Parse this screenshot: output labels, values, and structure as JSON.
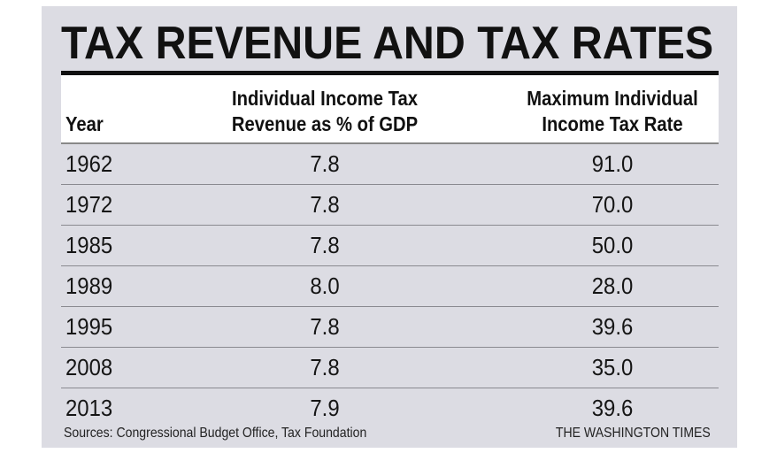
{
  "chart_data": {
    "type": "table",
    "title": "TAX REVENUE AND TAX RATES",
    "columns": [
      "Year",
      "Individual Income Tax Revenue as % of GDP",
      "Maximum Individual Income Tax Rate"
    ],
    "header_lines": [
      [
        "",
        "Year"
      ],
      [
        "Individual Income Tax",
        "Revenue as % of GDP"
      ],
      [
        "Maximum Individual",
        "Income Tax Rate"
      ]
    ],
    "rows": [
      [
        "1962",
        "7.8",
        "91.0"
      ],
      [
        "1972",
        "7.8",
        "70.0"
      ],
      [
        "1985",
        "7.8",
        "50.0"
      ],
      [
        "1989",
        "8.0",
        "28.0"
      ],
      [
        "1995",
        "7.8",
        "39.6"
      ],
      [
        "2008",
        "7.8",
        "35.0"
      ],
      [
        "2013",
        "7.9",
        "39.6"
      ]
    ],
    "sources": "Sources: Congressional Budget Office, Tax Foundation",
    "credit": "THE WASHINGTON TIMES"
  },
  "colors": {
    "background": "#dcdce3",
    "header_band": "#ffffff",
    "rule": "#111111",
    "text": "#111111"
  }
}
